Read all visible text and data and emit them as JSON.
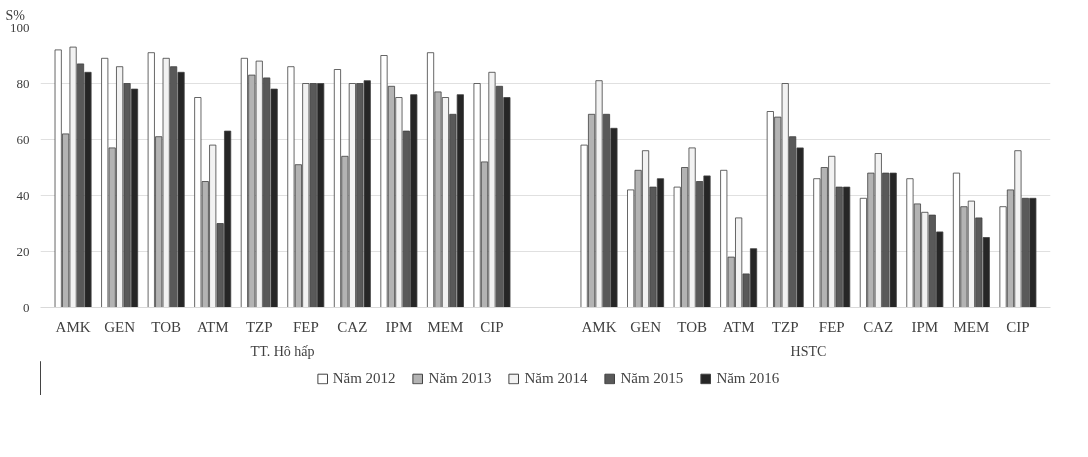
{
  "chart_data": {
    "type": "bar",
    "ylabel": "S%",
    "categories": [
      "AMK",
      "GEN",
      "TOB",
      "ATM",
      "TZP",
      "FEP",
      "CAZ",
      "IPM",
      "MEM",
      "CIP",
      "AMK",
      "GEN",
      "TOB",
      "ATM",
      "TZP",
      "FEP",
      "CAZ",
      "IPM",
      "MEM",
      "CIP"
    ],
    "annotations": [
      "TT. Hô hấp",
      "HSTC"
    ],
    "series": [
      {
        "name": "Năm 2012",
        "color": "#ffffff",
        "values": [
          92,
          89,
          91,
          75,
          89,
          86,
          85,
          90,
          91,
          80,
          58,
          42,
          43,
          49,
          70,
          46,
          39,
          46,
          48,
          36
        ]
      },
      {
        "name": "Năm 2013",
        "color": "#b3b3b3",
        "values": [
          62,
          57,
          61,
          45,
          83,
          51,
          54,
          79,
          77,
          52,
          69,
          49,
          50,
          18,
          68,
          50,
          48,
          37,
          36,
          42
        ]
      },
      {
        "name": "Năm 2014",
        "color": "#f2f2f2",
        "values": [
          93,
          86,
          89,
          58,
          88,
          80,
          80,
          75,
          75,
          84,
          81,
          56,
          57,
          32,
          80,
          54,
          55,
          34,
          38,
          56
        ]
      },
      {
        "name": "Năm 2015",
        "color": "#595959",
        "values": [
          87,
          80,
          86,
          30,
          82,
          80,
          80,
          63,
          69,
          79,
          69,
          43,
          45,
          12,
          61,
          43,
          48,
          33,
          32,
          39
        ]
      },
      {
        "name": "Năm 2016",
        "color": "#262626",
        "values": [
          84,
          78,
          84,
          63,
          78,
          80,
          81,
          76,
          76,
          75,
          64,
          46,
          47,
          21,
          57,
          43,
          48,
          27,
          25,
          39
        ]
      }
    ],
    "ylim": [
      0,
      100
    ],
    "yticks": [
      0,
      20,
      40,
      60,
      80,
      100
    ],
    "grid": "y",
    "legend": "bottom"
  }
}
